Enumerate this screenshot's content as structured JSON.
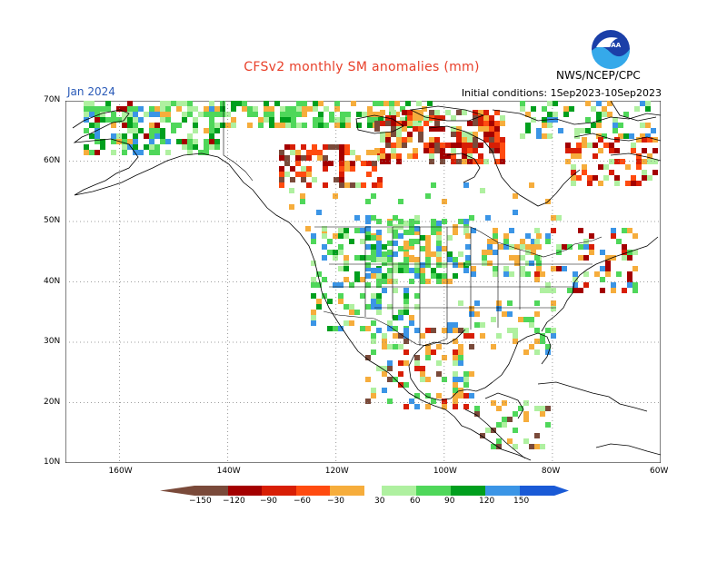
{
  "header": {
    "title": "CFSv2 monthly SM anomalies (mm)",
    "forecast_month": "Jan 2024",
    "initial_conditions": "Initial conditions: 1Sep2023-10Sep2023",
    "agency": "NWS/NCEP/CPC",
    "logo_text": "NOAA"
  },
  "map": {
    "lat_labels": [
      "70N",
      "60N",
      "50N",
      "40N",
      "30N",
      "20N",
      "10N"
    ],
    "lon_labels": [
      "160W",
      "140W",
      "120W",
      "100W",
      "80W",
      "60W"
    ],
    "colors": {
      "neg150": "#7a4a3a",
      "neg120": "#a40000",
      "neg90": "#d81e05",
      "neg60": "#ff4b10",
      "neg30": "#f6ad3c",
      "pos30": "#aff0a0",
      "pos60": "#4fd75a",
      "pos90": "#009f1e",
      "pos120": "#3b95e6",
      "pos150": "#1a5ad6"
    }
  },
  "colorbar": {
    "labels": [
      "−150",
      "−120",
      "−90",
      "−60",
      "−30",
      "30",
      "60",
      "90",
      "120",
      "150"
    ]
  }
}
